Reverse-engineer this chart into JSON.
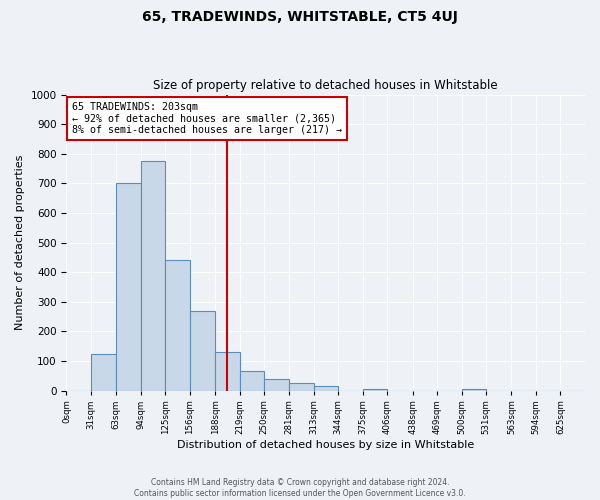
{
  "title": "65, TRADEWINDS, WHITSTABLE, CT5 4UJ",
  "subtitle": "Size of property relative to detached houses in Whitstable",
  "xlabel": "Distribution of detached houses by size in Whitstable",
  "ylabel": "Number of detached properties",
  "bin_labels": [
    "0sqm",
    "31sqm",
    "63sqm",
    "94sqm",
    "125sqm",
    "156sqm",
    "188sqm",
    "219sqm",
    "250sqm",
    "281sqm",
    "313sqm",
    "344sqm",
    "375sqm",
    "406sqm",
    "438sqm",
    "469sqm",
    "500sqm",
    "531sqm",
    "563sqm",
    "594sqm",
    "625sqm"
  ],
  "bin_edges": [
    0,
    31,
    63,
    94,
    125,
    156,
    188,
    219,
    250,
    281,
    313,
    344,
    375,
    406,
    438,
    469,
    500,
    531,
    563,
    594,
    625
  ],
  "bar_values": [
    0,
    125,
    700,
    775,
    440,
    270,
    130,
    65,
    40,
    25,
    15,
    0,
    5,
    0,
    0,
    0,
    5,
    0,
    0,
    0,
    0
  ],
  "bar_color": "#c8d8e8",
  "bar_edge_color": "#5b8db8",
  "vline_x": 203,
  "vline_color": "#cc0000",
  "annotation_title": "65 TRADEWINDS: 203sqm",
  "annotation_line1": "← 92% of detached houses are smaller (2,365)",
  "annotation_line2": "8% of semi-detached houses are larger (217) →",
  "annotation_box_color": "#ffffff",
  "annotation_box_edge_color": "#cc0000",
  "ylim": [
    0,
    1000
  ],
  "yticks": [
    0,
    100,
    200,
    300,
    400,
    500,
    600,
    700,
    800,
    900,
    1000
  ],
  "xlim": [
    0,
    625
  ],
  "footer_line1": "Contains HM Land Registry data © Crown copyright and database right 2024.",
  "footer_line2": "Contains public sector information licensed under the Open Government Licence v3.0.",
  "bg_color": "#eef2f7",
  "plot_bg_color": "#eef2f7"
}
